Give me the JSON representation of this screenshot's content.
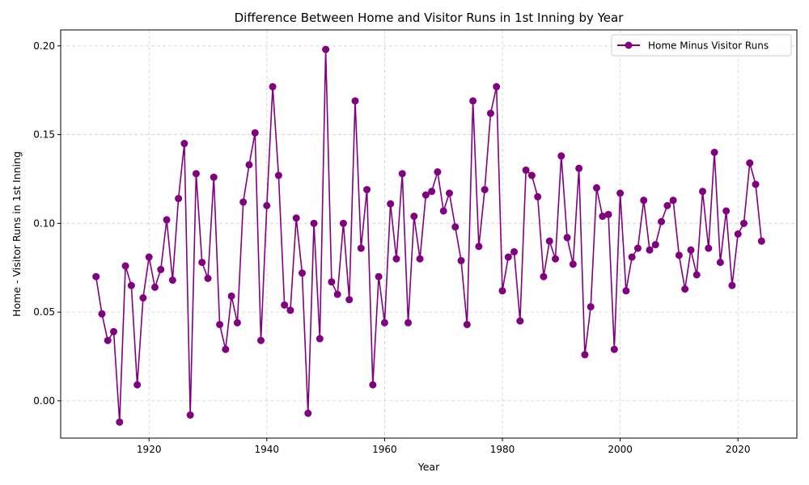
{
  "chart_data": {
    "type": "line",
    "title": "Difference Between Home and Visitor Runs in 1st Inning by Year",
    "xlabel": "Year",
    "ylabel": "Home - Visitor Runs in 1st Inning",
    "xlim": [
      1905,
      2030
    ],
    "ylim": [
      -0.021,
      0.209
    ],
    "xticks": [
      1920,
      1940,
      1960,
      1980,
      2000,
      2020
    ],
    "yticks": [
      0.0,
      0.05,
      0.1,
      0.15,
      0.2
    ],
    "ytick_labels": [
      "0.00",
      "0.05",
      "0.10",
      "0.15",
      "0.20"
    ],
    "grid": true,
    "legend_position": "top-right",
    "series": [
      {
        "name": "Home Minus Visitor Runs",
        "color": "#800080",
        "marker": "circle",
        "x": [
          1911,
          1912,
          1913,
          1914,
          1915,
          1916,
          1917,
          1918,
          1919,
          1920,
          1921,
          1922,
          1923,
          1924,
          1925,
          1926,
          1927,
          1928,
          1929,
          1930,
          1931,
          1932,
          1933,
          1934,
          1935,
          1936,
          1937,
          1938,
          1939,
          1940,
          1941,
          1942,
          1943,
          1944,
          1945,
          1946,
          1947,
          1948,
          1949,
          1950,
          1951,
          1952,
          1953,
          1954,
          1955,
          1956,
          1957,
          1958,
          1959,
          1960,
          1961,
          1962,
          1963,
          1964,
          1965,
          1966,
          1967,
          1968,
          1969,
          1970,
          1971,
          1972,
          1973,
          1974,
          1975,
          1976,
          1977,
          1978,
          1979,
          1980,
          1981,
          1982,
          1983,
          1984,
          1985,
          1986,
          1987,
          1988,
          1989,
          1990,
          1991,
          1992,
          1993,
          1994,
          1995,
          1996,
          1997,
          1998,
          1999,
          2000,
          2001,
          2002,
          2003,
          2004,
          2005,
          2006,
          2007,
          2008,
          2009,
          2010,
          2011,
          2012,
          2013,
          2014,
          2015,
          2016,
          2017,
          2018,
          2019,
          2020,
          2021,
          2022,
          2023,
          2024
        ],
        "y": [
          0.07,
          0.049,
          0.034,
          0.039,
          -0.012,
          0.076,
          0.065,
          0.009,
          0.058,
          0.081,
          0.064,
          0.074,
          0.102,
          0.068,
          0.114,
          0.145,
          -0.008,
          0.128,
          0.078,
          0.069,
          0.126,
          0.043,
          0.029,
          0.059,
          0.044,
          0.112,
          0.133,
          0.151,
          0.034,
          0.11,
          0.177,
          0.127,
          0.054,
          0.051,
          0.103,
          0.072,
          -0.007,
          0.1,
          0.035,
          0.198,
          0.067,
          0.06,
          0.1,
          0.057,
          0.169,
          0.086,
          0.119,
          0.009,
          0.07,
          0.044,
          0.111,
          0.08,
          0.128,
          0.044,
          0.104,
          0.08,
          0.116,
          0.118,
          0.129,
          0.107,
          0.117,
          0.098,
          0.079,
          0.043,
          0.169,
          0.087,
          0.119,
          0.162,
          0.177,
          0.062,
          0.081,
          0.084,
          0.045,
          0.13,
          0.127,
          0.115,
          0.07,
          0.09,
          0.08,
          0.138,
          0.092,
          0.077,
          0.131,
          0.026,
          0.053,
          0.12,
          0.104,
          0.105,
          0.029,
          0.117,
          0.062,
          0.081,
          0.086,
          0.113,
          0.085,
          0.088,
          0.101,
          0.11,
          0.113,
          0.082,
          0.063,
          0.085,
          0.071,
          0.118,
          0.086,
          0.14,
          0.078,
          0.107,
          0.065,
          0.094,
          0.1,
          0.134,
          0.122,
          0.09
        ]
      }
    ]
  }
}
